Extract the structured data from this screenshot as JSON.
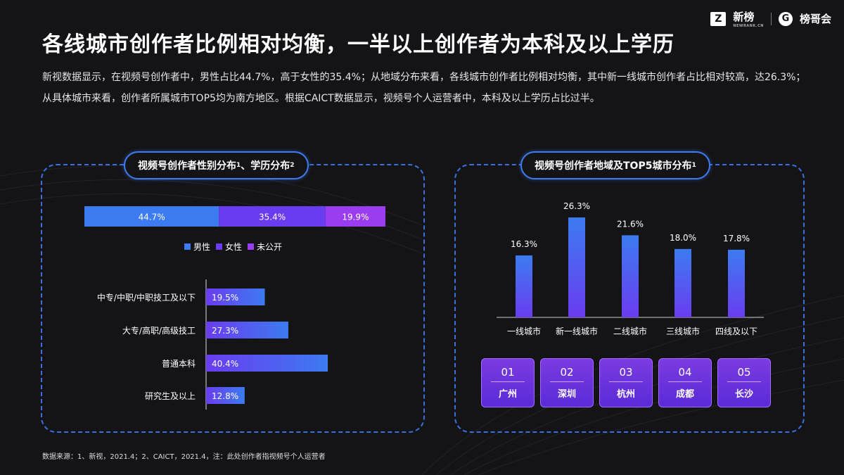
{
  "header": {
    "logo1_name": "新榜",
    "logo1_sub": "NEWRANK.CN",
    "logo2_name": "榜哥会",
    "title": "各线城市创作者比例相对均衡，一半以上创作者为本科及以上学历",
    "description": "新视数据显示，在视频号创作者中，男性占比44.7%，高于女性的35.4%；从地域分布来看，各线城市创作者比例相对均衡，其中新一线城市创作者占比相对较高，达26.3%；从具体城市来看，创作者所属城市TOP5均为南方地区。根据CAICT数据显示，视频号个人运营者中，本科及以上学历占比过半。"
  },
  "left_panel": {
    "title": "视频号创作者性别分布",
    "title_sup1": "1",
    "title_mid": "、学历分布",
    "title_sup2": "2"
  },
  "right_panel": {
    "title": "视频号创作者地域及TOP5城市分布",
    "title_sup": "1"
  },
  "chart_data": [
    {
      "type": "bar",
      "orientation": "horizontal-stacked",
      "series": [
        {
          "name": "男性",
          "value": 44.7,
          "label": "44.7%",
          "color": "#3c7bf0"
        },
        {
          "name": "女性",
          "value": 35.4,
          "label": "35.4%",
          "color": "#6a3cf0"
        },
        {
          "name": "未公开",
          "value": 19.9,
          "label": "19.9%",
          "color": "#9a3cf0"
        }
      ],
      "legend_placement": "bottom"
    },
    {
      "type": "bar",
      "orientation": "horizontal",
      "categories": [
        "中专/中职/中职技工及以下",
        "大专/高职/高级技工",
        "普通本科",
        "研究生及以上"
      ],
      "values": [
        19.5,
        27.3,
        40.4,
        12.8
      ],
      "labels": [
        "19.5%",
        "27.3%",
        "40.4%",
        "12.8%"
      ]
    },
    {
      "type": "bar",
      "orientation": "vertical",
      "categories": [
        "一线城市",
        "新一线城市",
        "二线城市",
        "三线城市",
        "四线及以下"
      ],
      "values": [
        16.3,
        26.3,
        21.6,
        18.0,
        17.8
      ],
      "labels": [
        "16.3%",
        "26.3%",
        "21.6%",
        "18.0%",
        "17.8%"
      ]
    }
  ],
  "top5_cities": [
    {
      "rank": "01",
      "name": "广州"
    },
    {
      "rank": "02",
      "name": "深圳"
    },
    {
      "rank": "03",
      "name": "杭州"
    },
    {
      "rank": "04",
      "name": "成都"
    },
    {
      "rank": "05",
      "name": "长沙"
    }
  ],
  "footer": {
    "source": "数据来源：1、新视，2021.4；2、CAICT，2021.4，注：此处创作者指视频号个人运营者"
  },
  "colors": {
    "blue": "#3c7bf0",
    "violet": "#6a3cf0",
    "purple": "#9a3cf0",
    "background": "#141416"
  }
}
